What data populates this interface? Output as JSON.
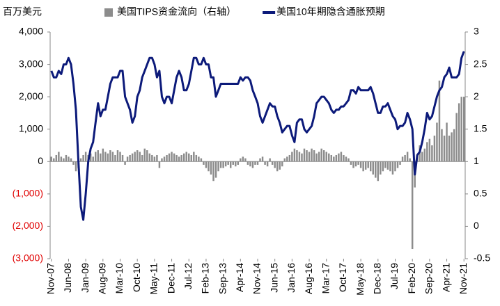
{
  "chart_data": {
    "type": "bar",
    "y_axis_title": "百万美元",
    "legend": "top",
    "negative_tick_color": "#e00000",
    "categories": [
      "Nov-07",
      null,
      null,
      null,
      null,
      null,
      null,
      "Jun-08",
      null,
      null,
      null,
      null,
      null,
      null,
      "Jan-09",
      null,
      null,
      null,
      null,
      null,
      null,
      "Aug-09",
      null,
      null,
      null,
      null,
      null,
      null,
      "Mar-10",
      null,
      null,
      null,
      null,
      null,
      null,
      "Oct-10",
      null,
      null,
      null,
      null,
      null,
      null,
      "May-11",
      null,
      null,
      null,
      null,
      null,
      null,
      "Dec-11",
      null,
      null,
      null,
      null,
      null,
      null,
      "Jul-12",
      null,
      null,
      null,
      null,
      null,
      null,
      "Feb-13",
      null,
      null,
      null,
      null,
      null,
      null,
      "Sep-13",
      null,
      null,
      null,
      null,
      null,
      null,
      "Apr-14",
      null,
      null,
      null,
      null,
      null,
      null,
      "Nov-14",
      null,
      null,
      null,
      null,
      null,
      null,
      "Jun-15",
      null,
      null,
      null,
      null,
      null,
      null,
      "Jan-16",
      null,
      null,
      null,
      null,
      null,
      null,
      "Aug-16",
      null,
      null,
      null,
      null,
      null,
      null,
      "Mar-17",
      null,
      null,
      null,
      null,
      null,
      null,
      "Oct-17",
      null,
      null,
      null,
      null,
      null,
      null,
      "May-18",
      null,
      null,
      null,
      null,
      null,
      null,
      "Dec-18",
      null,
      null,
      null,
      null,
      null,
      null,
      "Jul-19",
      null,
      null,
      null,
      null,
      null,
      null,
      "Feb-20",
      null,
      null,
      null,
      null,
      null,
      null,
      "Sep-20",
      null,
      null,
      null,
      null,
      null,
      null,
      "Apr-21",
      null,
      null,
      null,
      null,
      null,
      null,
      "Nov-21"
    ],
    "series": [
      {
        "name": "美国TIPS资金流向（右轴）",
        "type": "bar",
        "color": "#8c8c8c",
        "values": [
          150,
          100,
          200,
          300,
          150,
          100,
          200,
          150,
          100,
          -100,
          -300,
          -200,
          100,
          200,
          300,
          200,
          250,
          150,
          300,
          350,
          250,
          400,
          300,
          250,
          350,
          300,
          200,
          350,
          300,
          200,
          -100,
          150,
          200,
          250,
          300,
          350,
          300,
          200,
          400,
          350,
          250,
          200,
          150,
          200,
          -200,
          100,
          150,
          200,
          250,
          300,
          250,
          200,
          150,
          200,
          250,
          300,
          250,
          200,
          300,
          200,
          150,
          100,
          -100,
          -200,
          -300,
          -400,
          -600,
          -500,
          -300,
          -200,
          -200,
          -150,
          -100,
          -200,
          -100,
          -150,
          -100,
          100,
          150,
          100,
          -100,
          -150,
          -200,
          -100,
          -100,
          100,
          150,
          -100,
          -150,
          100,
          -100,
          -200,
          -300,
          -250,
          -150,
          100,
          150,
          200,
          300,
          400,
          350,
          300,
          250,
          400,
          350,
          300,
          400,
          350,
          250,
          300,
          400,
          350,
          300,
          250,
          200,
          150,
          200,
          250,
          300,
          200,
          150,
          100,
          -100,
          -200,
          -150,
          -100,
          -200,
          -300,
          -250,
          -200,
          -300,
          -400,
          -500,
          -600,
          -400,
          -300,
          -200,
          -250,
          -300,
          -400,
          -300,
          -200,
          -100,
          150,
          200,
          300,
          100,
          -2700,
          -800,
          200,
          500,
          300,
          400,
          600,
          700,
          500,
          800,
          1200,
          2500,
          1000,
          800,
          1200,
          800,
          900,
          1000,
          1500,
          1800,
          2000,
          2000
        ]
      },
      {
        "name": "美国10年期隐含通胀预期",
        "type": "line",
        "axis": "y2",
        "color": "#0c1a7a",
        "values": [
          2.4,
          2.3,
          2.3,
          2.4,
          2.35,
          2.5,
          2.5,
          2.6,
          2.5,
          2.2,
          1.8,
          1.0,
          0.3,
          0.1,
          0.5,
          1.0,
          1.2,
          1.3,
          1.6,
          1.9,
          1.7,
          1.8,
          1.8,
          2.0,
          2.2,
          2.3,
          2.3,
          2.3,
          2.4,
          2.4,
          2.0,
          1.9,
          1.8,
          1.6,
          1.7,
          2.0,
          2.1,
          2.3,
          2.4,
          2.5,
          2.6,
          2.6,
          2.5,
          2.3,
          2.4,
          2.0,
          1.9,
          2.0,
          2.0,
          1.9,
          2.1,
          2.3,
          2.4,
          2.3,
          2.1,
          2.1,
          2.2,
          2.4,
          2.6,
          2.6,
          2.5,
          2.5,
          2.6,
          2.5,
          2.5,
          2.3,
          2.3,
          2.0,
          2.1,
          2.2,
          2.2,
          2.2,
          2.2,
          2.2,
          2.2,
          2.2,
          2.2,
          2.3,
          2.25,
          2.3,
          2.3,
          2.25,
          2.1,
          2.0,
          1.9,
          1.7,
          1.6,
          1.7,
          1.8,
          1.9,
          1.85,
          1.85,
          1.7,
          1.6,
          1.45,
          1.5,
          1.55,
          1.55,
          1.4,
          1.3,
          1.6,
          1.65,
          1.65,
          1.5,
          1.45,
          1.5,
          1.55,
          1.7,
          1.9,
          1.95,
          2.0,
          2.0,
          1.95,
          1.9,
          1.8,
          1.75,
          1.8,
          1.8,
          1.85,
          1.85,
          1.9,
          1.95,
          2.1,
          2.1,
          2.05,
          2.15,
          2.1,
          2.1,
          2.1,
          2.1,
          2.15,
          2.05,
          1.9,
          1.75,
          1.75,
          1.85,
          1.85,
          1.9,
          1.8,
          1.7,
          1.65,
          1.5,
          1.55,
          1.55,
          1.6,
          1.75,
          1.65,
          1.5,
          0.8,
          1.1,
          1.15,
          1.3,
          1.5,
          1.75,
          1.65,
          1.7,
          1.85,
          2.0,
          2.1,
          2.15,
          2.3,
          2.35,
          2.45,
          2.3,
          2.3,
          2.3,
          2.35,
          2.6,
          2.7
        ]
      }
    ],
    "ylim": [
      -3000,
      4000
    ],
    "yticks": [
      {
        "value": 4000,
        "label": "4,000"
      },
      {
        "value": 3000,
        "label": "3,000"
      },
      {
        "value": 2000,
        "label": "2,000"
      },
      {
        "value": 1000,
        "label": "1,000"
      },
      0,
      {
        "value": -1000,
        "label": "(1,000)"
      },
      {
        "value": -2000,
        "label": "(2,000)"
      },
      {
        "value": -3000,
        "label": "(3,000)"
      }
    ],
    "y2lim": [
      -0.5,
      3
    ],
    "y2ticks": [
      3,
      2.5,
      2,
      1.5,
      1,
      0.5,
      0,
      -0.5
    ]
  }
}
